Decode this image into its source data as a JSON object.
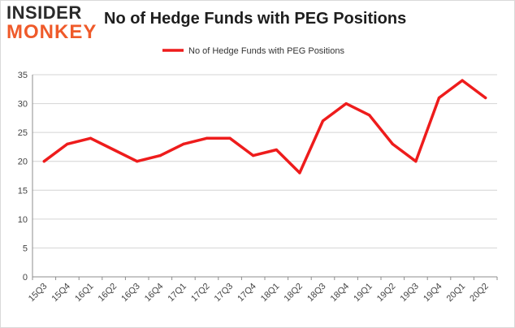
{
  "logo": {
    "line1": "INSIDER",
    "line2": "MONKEY"
  },
  "chart_data": {
    "type": "line",
    "title": "No of Hedge Funds with PEG Positions",
    "xlabel": "",
    "ylabel": "",
    "categories": [
      "15Q3",
      "15Q4",
      "16Q1",
      "16Q2",
      "16Q3",
      "16Q4",
      "17Q1",
      "17Q2",
      "17Q3",
      "17Q4",
      "18Q1",
      "18Q2",
      "18Q3",
      "18Q4",
      "19Q1",
      "19Q2",
      "19Q3",
      "19Q4",
      "20Q1",
      "20Q2"
    ],
    "series": [
      {
        "name": "No of Hedge Funds with PEG Positions",
        "values": [
          20,
          23,
          24,
          22,
          20,
          21,
          23,
          24,
          24,
          21,
          22,
          18,
          27,
          30,
          28,
          23,
          20,
          31,
          34,
          31
        ],
        "color": "#ee1c1c"
      }
    ],
    "ylim": [
      0,
      35
    ],
    "yticks": [
      0,
      5,
      10,
      15,
      20,
      25,
      30,
      35
    ],
    "grid": true,
    "legend": "top-center"
  }
}
